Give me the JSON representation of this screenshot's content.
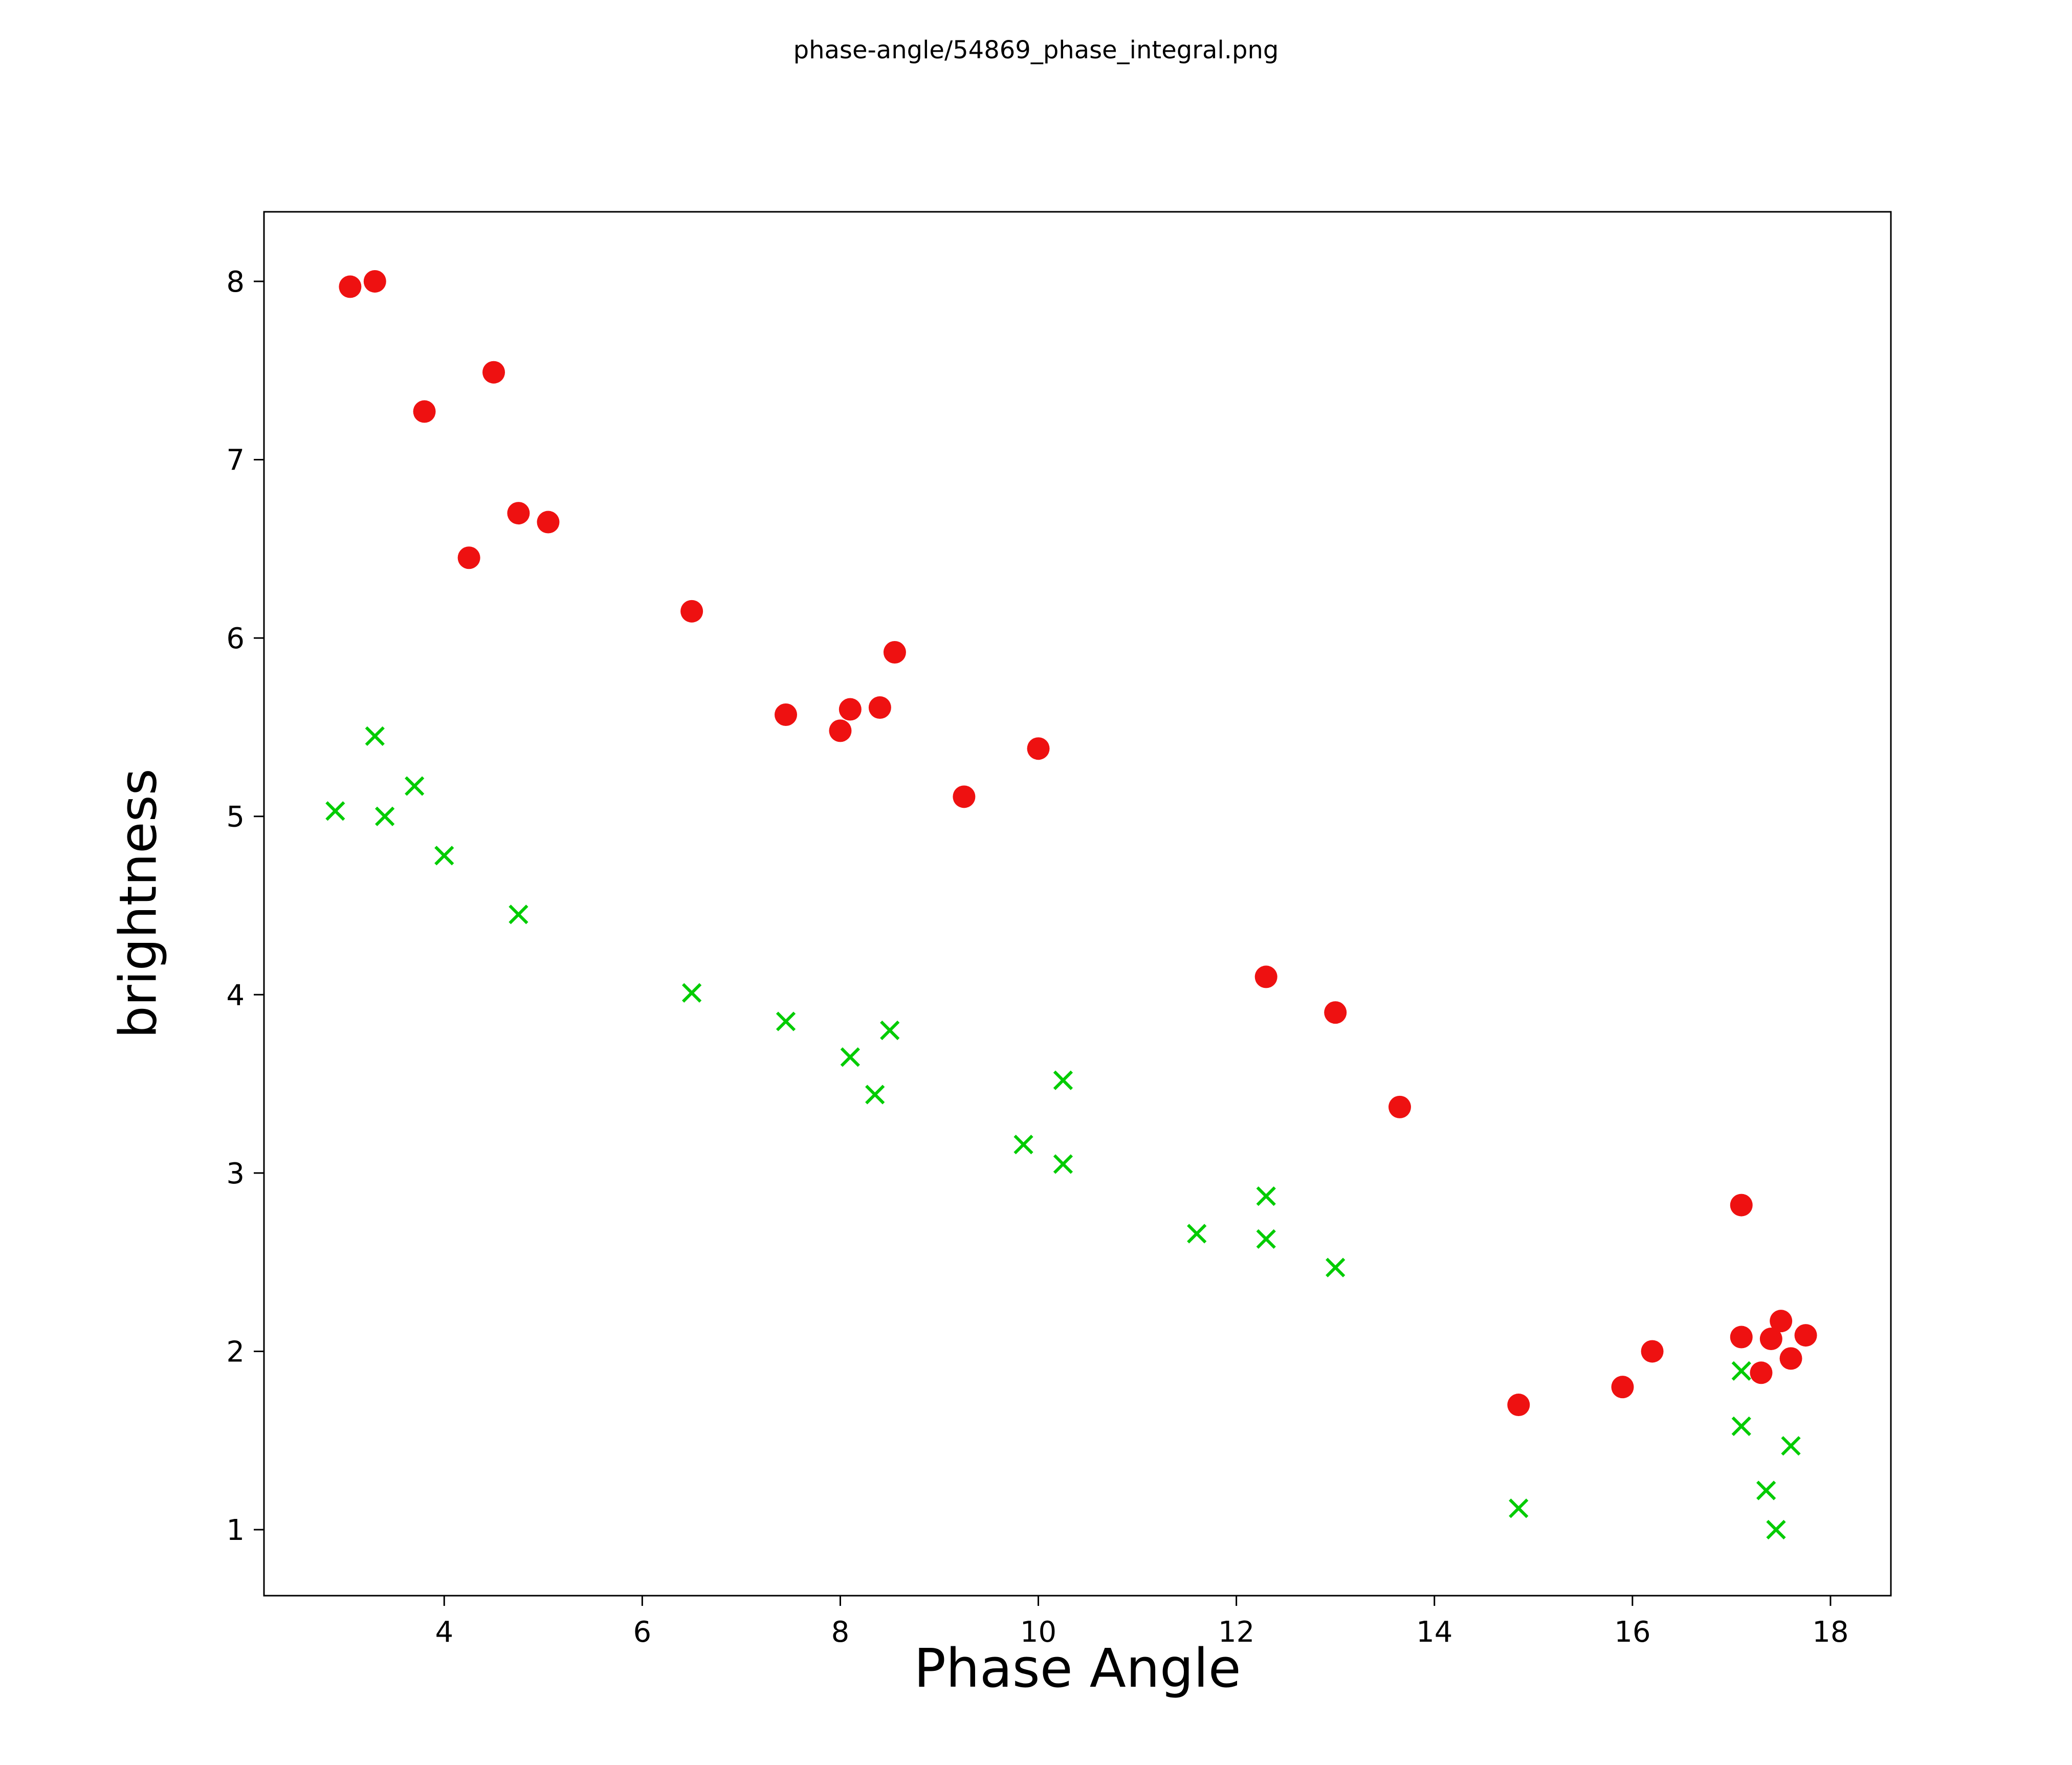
{
  "title": "phase-angle/54869_phase_integral.png",
  "chart_data": {
    "type": "scatter",
    "title": "phase-angle/54869_phase_integral.png",
    "xlabel": "Phase Angle",
    "ylabel": "brightness",
    "xlim": [
      2.18,
      18.61
    ],
    "ylim": [
      0.63,
      8.39
    ],
    "xticks": [
      4,
      6,
      8,
      10,
      12,
      14,
      16,
      18
    ],
    "yticks": [
      1,
      2,
      3,
      4,
      5,
      6,
      7,
      8
    ],
    "grid": false,
    "legend_position": "none",
    "series": [
      {
        "name": "red-circles",
        "marker": "circle",
        "color": "#ee1111",
        "points": [
          [
            3.05,
            7.97
          ],
          [
            3.3,
            8.0
          ],
          [
            3.8,
            7.27
          ],
          [
            4.25,
            6.45
          ],
          [
            4.5,
            7.49
          ],
          [
            4.75,
            6.7
          ],
          [
            5.05,
            6.65
          ],
          [
            6.5,
            6.15
          ],
          [
            7.45,
            5.57
          ],
          [
            8.0,
            5.48
          ],
          [
            8.1,
            5.6
          ],
          [
            8.4,
            5.61
          ],
          [
            8.55,
            5.92
          ],
          [
            9.25,
            5.11
          ],
          [
            10.0,
            5.38
          ],
          [
            12.3,
            4.1
          ],
          [
            13.0,
            3.9
          ],
          [
            13.65,
            3.37
          ],
          [
            14.85,
            1.7
          ],
          [
            15.9,
            1.8
          ],
          [
            16.2,
            2.0
          ],
          [
            17.1,
            2.82
          ],
          [
            17.1,
            2.08
          ],
          [
            17.3,
            1.88
          ],
          [
            17.4,
            2.07
          ],
          [
            17.5,
            2.17
          ],
          [
            17.6,
            1.96
          ],
          [
            17.75,
            2.09
          ]
        ]
      },
      {
        "name": "green-crosses",
        "marker": "x",
        "color": "#00cc00",
        "points": [
          [
            2.9,
            5.03
          ],
          [
            3.3,
            5.45
          ],
          [
            3.4,
            5.0
          ],
          [
            3.7,
            5.17
          ],
          [
            4.0,
            4.78
          ],
          [
            4.75,
            4.45
          ],
          [
            6.5,
            4.01
          ],
          [
            7.45,
            3.85
          ],
          [
            8.1,
            3.65
          ],
          [
            8.35,
            3.44
          ],
          [
            8.5,
            3.8
          ],
          [
            9.85,
            3.16
          ],
          [
            10.25,
            3.52
          ],
          [
            10.25,
            3.05
          ],
          [
            11.6,
            2.66
          ],
          [
            12.3,
            2.87
          ],
          [
            12.3,
            2.63
          ],
          [
            13.0,
            2.47
          ],
          [
            14.85,
            1.12
          ],
          [
            17.1,
            1.89
          ],
          [
            17.1,
            1.58
          ],
          [
            17.35,
            1.22
          ],
          [
            17.45,
            1.0
          ],
          [
            17.6,
            1.47
          ]
        ]
      }
    ]
  }
}
